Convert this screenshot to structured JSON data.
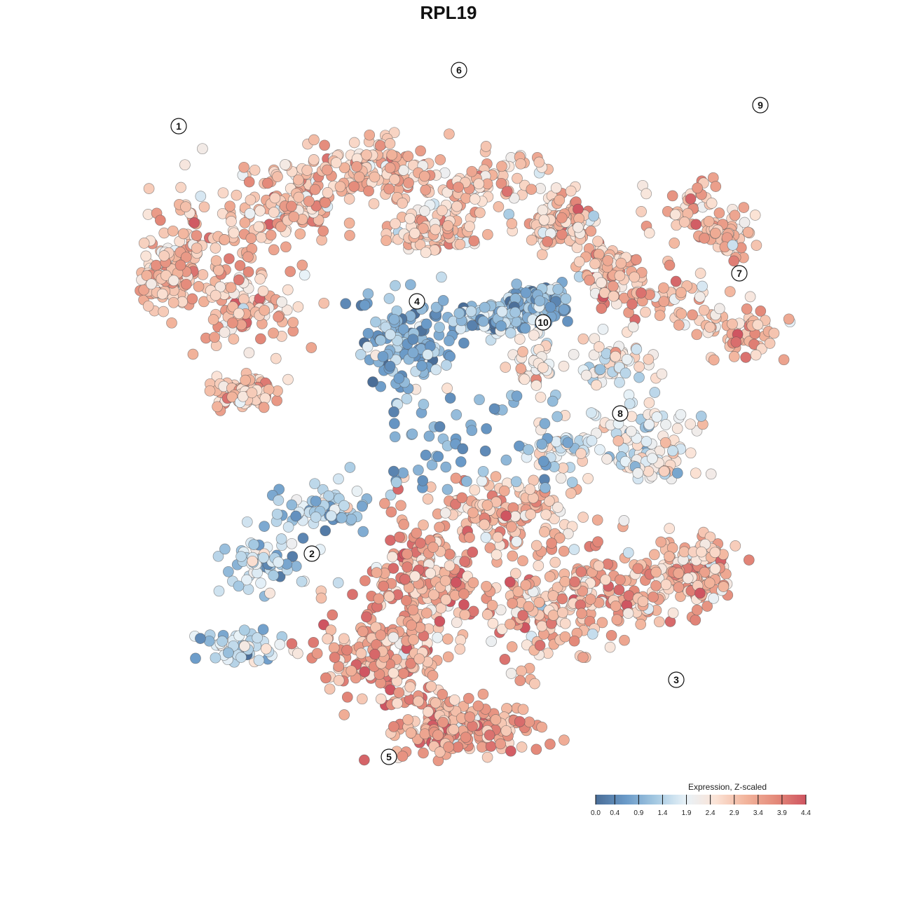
{
  "chart_data": {
    "type": "scatter",
    "title": "RPL19",
    "xlabel": "",
    "ylabel": "",
    "grid": false,
    "legend": {
      "title": "Expression, Z-scaled",
      "placement": "bottom-right",
      "ticks": [
        "0.0",
        "0.4",
        "0.9",
        "1.4",
        "1.9",
        "2.4",
        "2.9",
        "3.4",
        "3.9",
        "4.4"
      ],
      "range": [
        0.0,
        4.4
      ],
      "colors": [
        "#4a6d97",
        "#6a9ac8",
        "#a5c9e2",
        "#e8f2f8",
        "#fbe3d6",
        "#f2b49c",
        "#e48a7a",
        "#cf5561"
      ]
    },
    "clusters": [
      {
        "label": "1",
        "x": -3.6,
        "y": 4.6,
        "mean_expression": 3.0
      },
      {
        "label": "2",
        "x": -1.7,
        "y": -1.5,
        "mean_expression": 1.5
      },
      {
        "label": "3",
        "x": 3.5,
        "y": -3.3,
        "mean_expression": 3.1
      },
      {
        "label": "4",
        "x": -0.2,
        "y": 2.1,
        "mean_expression": 1.0
      },
      {
        "label": "5",
        "x": -0.6,
        "y": -4.4,
        "mean_expression": 3.3
      },
      {
        "label": "6",
        "x": 0.4,
        "y": 5.4,
        "mean_expression": 2.9
      },
      {
        "label": "7",
        "x": 4.4,
        "y": 2.5,
        "mean_expression": 3.0
      },
      {
        "label": "8",
        "x": 2.7,
        "y": 0.5,
        "mean_expression": 2.0
      },
      {
        "label": "9",
        "x": 4.7,
        "y": 4.9,
        "mean_expression": 3.0
      },
      {
        "label": "10",
        "x": 1.6,
        "y": 1.8,
        "mean_expression": 2.6
      }
    ]
  }
}
